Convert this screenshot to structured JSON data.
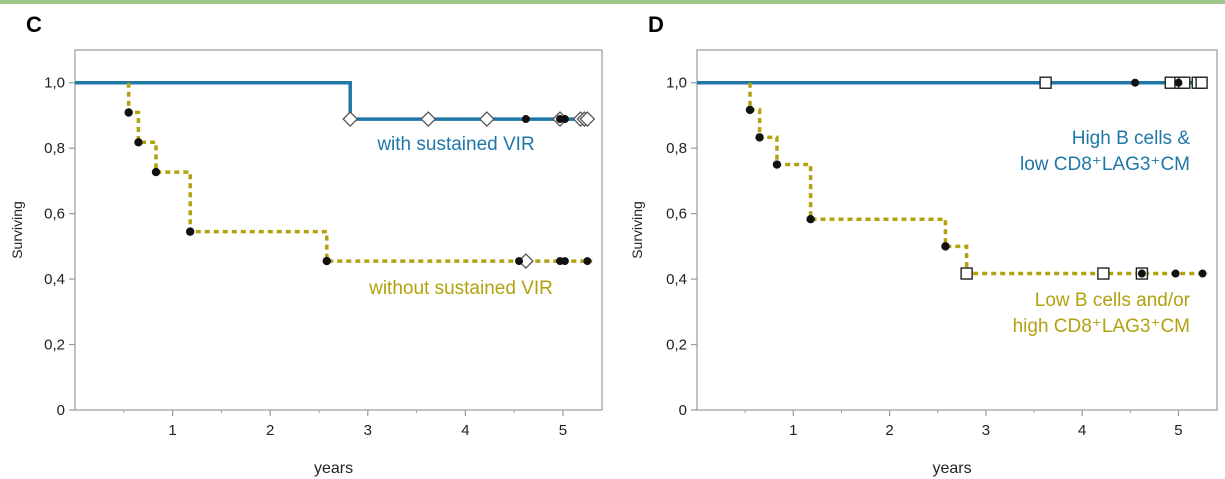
{
  "colors": {
    "blue": "#1f77a8",
    "olive": "#b3a20f",
    "axis": "#9a9a9a",
    "marker": "#111111"
  },
  "chart_data": [
    {
      "panel_label": "C",
      "type": "line",
      "xlabel": "years",
      "ylabel": "Surviving",
      "xlim": [
        0,
        5.4
      ],
      "ylim": [
        0,
        1.1
      ],
      "x_ticks": [
        "1",
        "2",
        "3",
        "4",
        "5"
      ],
      "y_ticks": [
        "0",
        "0,2",
        "0,4",
        "0,6",
        "0,8",
        "1,0"
      ],
      "grid": false,
      "series": [
        {
          "name": "with sustained VIR",
          "color": "#1f77a8",
          "style": "solid",
          "steps": [
            [
              0,
              1.0
            ],
            [
              2.82,
              1.0
            ],
            [
              2.82,
              0.889
            ],
            [
              5.2,
              0.889
            ]
          ],
          "events": [],
          "censored_diamonds": [
            2.82,
            3.62,
            4.22,
            4.97,
            5.18,
            5.22,
            5.25
          ],
          "censored_dots": [
            4.62,
            4.97,
            5.02
          ]
        },
        {
          "name": "without sustained VIR",
          "color": "#b3a20f",
          "style": "dotted",
          "steps": [
            [
              0.55,
              1.0
            ],
            [
              0.55,
              0.909
            ],
            [
              0.65,
              0.909
            ],
            [
              0.65,
              0.818
            ],
            [
              0.83,
              0.818
            ],
            [
              0.83,
              0.727
            ],
            [
              1.18,
              0.727
            ],
            [
              1.18,
              0.545
            ],
            [
              2.58,
              0.545
            ],
            [
              2.58,
              0.455
            ],
            [
              5.3,
              0.455
            ]
          ],
          "events": [
            [
              0.55,
              0.909
            ],
            [
              0.65,
              0.818
            ],
            [
              0.83,
              0.727
            ],
            [
              1.18,
              0.545
            ],
            [
              2.58,
              0.455
            ]
          ],
          "censored_diamonds": [
            4.62
          ],
          "censored_dots": [
            4.55,
            4.97,
            5.02,
            5.25
          ]
        }
      ],
      "annotations": [
        {
          "text": "with sustained VIR",
          "series": 0
        },
        {
          "text": "without sustained VIR",
          "series": 1
        }
      ]
    },
    {
      "panel_label": "D",
      "type": "line",
      "xlabel": "years",
      "ylabel": "Surviving",
      "xlim": [
        0,
        5.4
      ],
      "ylim": [
        0,
        1.1
      ],
      "x_ticks": [
        "1",
        "2",
        "3",
        "4",
        "5"
      ],
      "y_ticks": [
        "0",
        "0,2",
        "0,4",
        "0,6",
        "0,8",
        "1,0"
      ],
      "grid": false,
      "series": [
        {
          "name": "High B cells & low CD8⁺LAG3⁺CM",
          "color": "#1f77a8",
          "style": "solid",
          "steps": [
            [
              0,
              1.0
            ],
            [
              5.3,
              1.0
            ]
          ],
          "events": [],
          "censored_squares": [
            3.62,
            4.92,
            5.02,
            5.06,
            5.2,
            5.24
          ],
          "censored_dots": [
            4.55,
            5.0
          ]
        },
        {
          "name": "Low B cells and/or high CD8⁺LAG3⁺CM",
          "color": "#b3a20f",
          "style": "dotted",
          "steps": [
            [
              0.55,
              1.0
            ],
            [
              0.55,
              0.917
            ],
            [
              0.65,
              0.917
            ],
            [
              0.65,
              0.833
            ],
            [
              0.83,
              0.833
            ],
            [
              0.83,
              0.75
            ],
            [
              1.18,
              0.75
            ],
            [
              1.18,
              0.583
            ],
            [
              2.58,
              0.583
            ],
            [
              2.58,
              0.5
            ],
            [
              2.8,
              0.5
            ],
            [
              2.8,
              0.417
            ],
            [
              5.3,
              0.417
            ]
          ],
          "events": [
            [
              0.55,
              0.917
            ],
            [
              0.65,
              0.833
            ],
            [
              0.83,
              0.75
            ],
            [
              1.18,
              0.583
            ],
            [
              2.58,
              0.5
            ]
          ],
          "censored_squares": [
            2.8,
            4.22,
            4.62
          ],
          "censored_dots": [
            4.62,
            4.97,
            5.25
          ]
        }
      ],
      "annotations": [
        {
          "lines": [
            "High B cells &",
            "low CD8⁺LAG3⁺CM"
          ],
          "series": 0
        },
        {
          "lines": [
            "Low B cells and/or",
            "high CD8⁺LAG3⁺CM"
          ],
          "series": 1
        }
      ]
    }
  ]
}
